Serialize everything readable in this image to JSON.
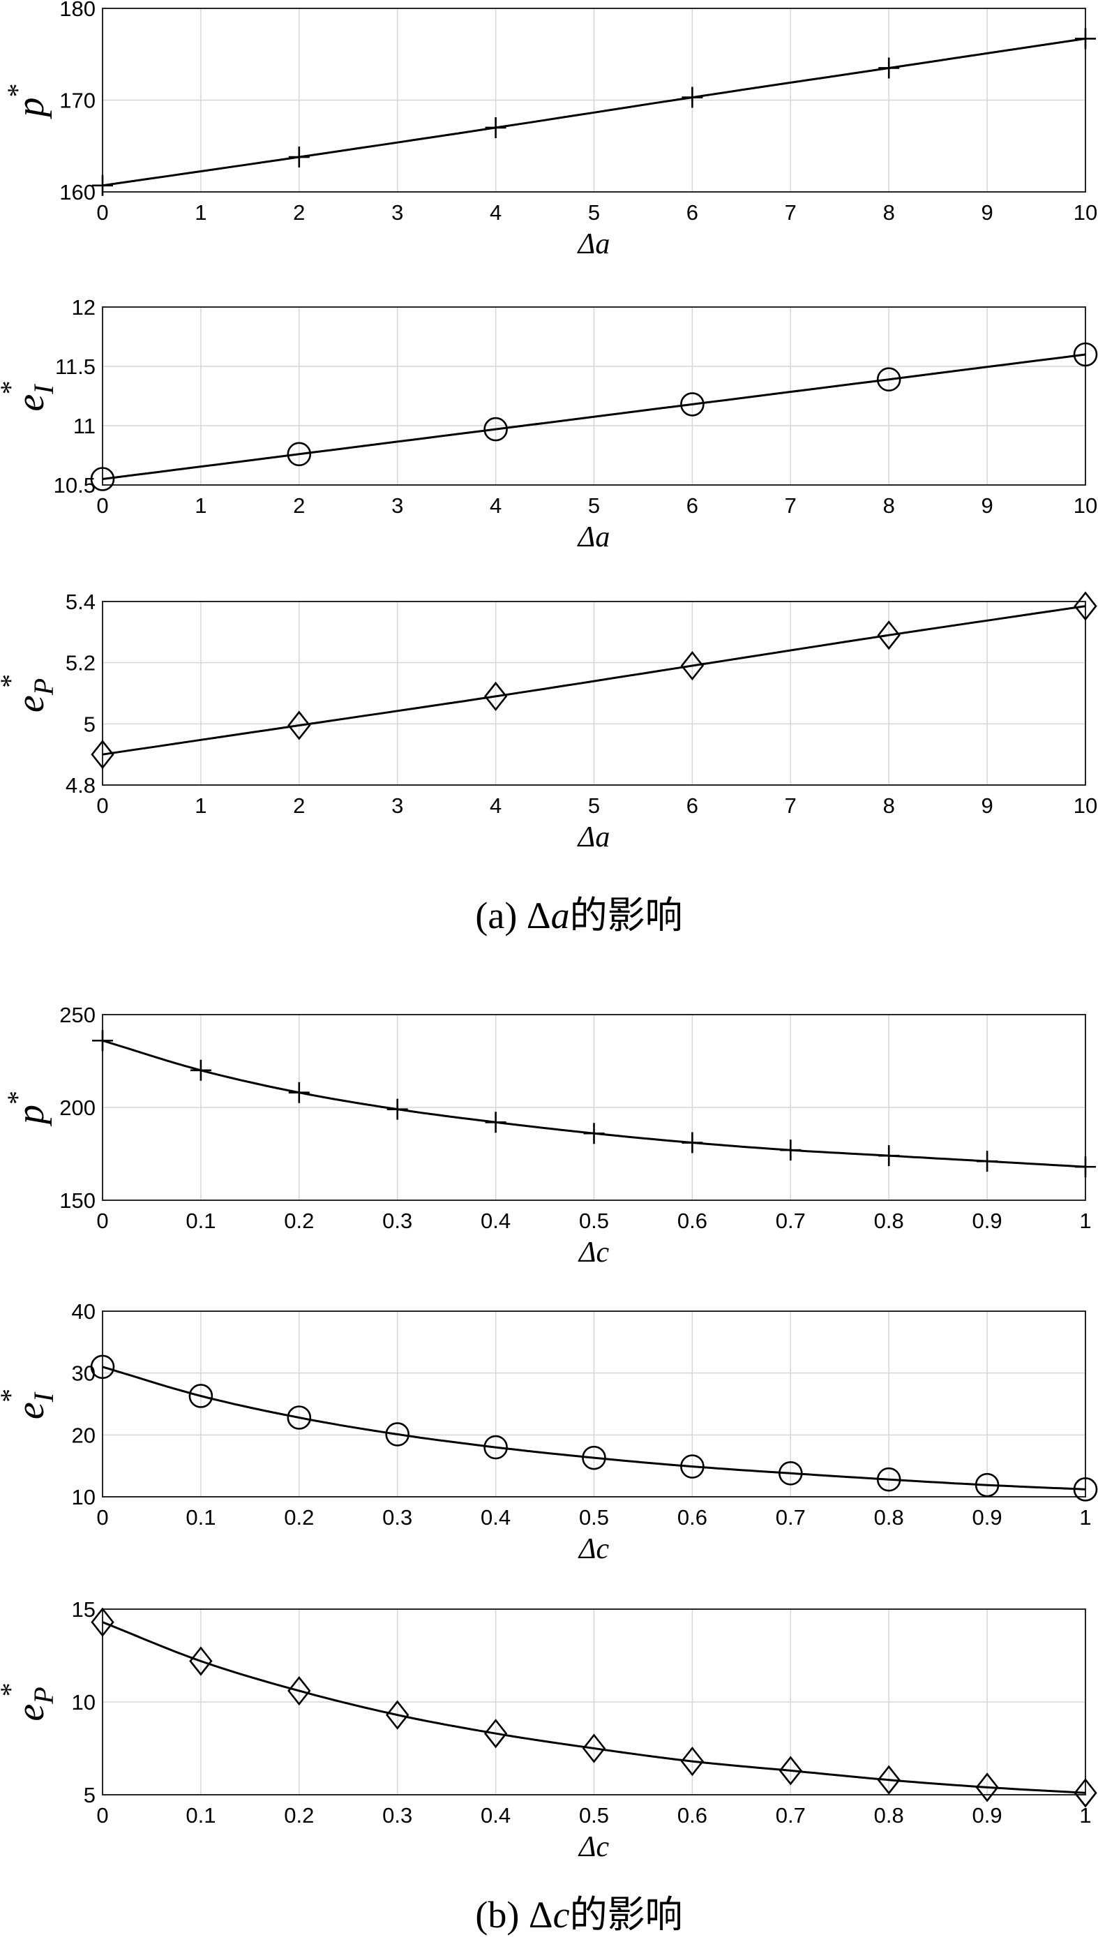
{
  "captions": [
    {
      "prefix": "(a) Δ",
      "var": "a",
      "suffix": "的影响"
    },
    {
      "prefix": "(b) Δ",
      "var": "c",
      "suffix": "的影响"
    }
  ],
  "chart_data": [
    {
      "type": "line",
      "marker": "plus",
      "x": [
        0,
        2,
        4,
        6,
        8,
        10
      ],
      "y": [
        160.7,
        163.8,
        167.0,
        170.3,
        173.5,
        176.7
      ],
      "xlabel": "Δa",
      "ylabel": {
        "base": "p",
        "sup": "*",
        "sub": ""
      },
      "xlim": [
        0,
        10
      ],
      "ylim": [
        160,
        180
      ],
      "xticks": [
        "0",
        "1",
        "2",
        "3",
        "4",
        "5",
        "6",
        "7",
        "8",
        "9",
        "10"
      ],
      "yticks": [
        "160",
        "170",
        "180"
      ],
      "grid": true
    },
    {
      "type": "line",
      "marker": "circle",
      "x": [
        0,
        2,
        4,
        6,
        8,
        10
      ],
      "y": [
        10.55,
        10.76,
        10.97,
        11.18,
        11.39,
        11.6
      ],
      "xlabel": "Δa",
      "ylabel": {
        "base": "e",
        "sup": "*",
        "sub": "I"
      },
      "xlim": [
        0,
        10
      ],
      "ylim": [
        10.5,
        12
      ],
      "xticks": [
        "0",
        "1",
        "2",
        "3",
        "4",
        "5",
        "6",
        "7",
        "8",
        "9",
        "10"
      ],
      "yticks": [
        "10.5",
        "11",
        "11.5",
        "12"
      ],
      "grid": true
    },
    {
      "type": "line",
      "marker": "diamond",
      "x": [
        0,
        2,
        4,
        6,
        8,
        10
      ],
      "y": [
        4.9,
        4.995,
        5.09,
        5.19,
        5.29,
        5.385
      ],
      "xlabel": "Δa",
      "ylabel": {
        "base": "e",
        "sup": "*",
        "sub": "P"
      },
      "xlim": [
        0,
        10
      ],
      "ylim": [
        4.8,
        5.4
      ],
      "xticks": [
        "0",
        "1",
        "2",
        "3",
        "4",
        "5",
        "6",
        "7",
        "8",
        "9",
        "10"
      ],
      "yticks": [
        "4.8",
        "5",
        "5.2",
        "5.4"
      ],
      "grid": true
    },
    {
      "type": "line",
      "marker": "plus",
      "x": [
        0,
        0.1,
        0.2,
        0.3,
        0.4,
        0.5,
        0.6,
        0.7,
        0.8,
        0.9,
        1
      ],
      "y": [
        236,
        220,
        208,
        199,
        192,
        186,
        181,
        177,
        174,
        171,
        168
      ],
      "xlabel": "Δc",
      "ylabel": {
        "base": "p",
        "sup": "*",
        "sub": ""
      },
      "xlim": [
        0,
        1
      ],
      "ylim": [
        150,
        250
      ],
      "xticks": [
        "0",
        "0.1",
        "0.2",
        "0.3",
        "0.4",
        "0.5",
        "0.6",
        "0.7",
        "0.8",
        "0.9",
        "1"
      ],
      "yticks": [
        "150",
        "200",
        "250"
      ],
      "grid": true
    },
    {
      "type": "line",
      "marker": "circle",
      "x": [
        0,
        0.1,
        0.2,
        0.3,
        0.4,
        0.5,
        0.6,
        0.7,
        0.8,
        0.9,
        1
      ],
      "y": [
        31.0,
        26.3,
        22.8,
        20.1,
        18.0,
        16.3,
        14.9,
        13.8,
        12.8,
        11.9,
        11.2
      ],
      "xlabel": "Δc",
      "ylabel": {
        "base": "e",
        "sup": "*",
        "sub": "I"
      },
      "xlim": [
        0,
        1
      ],
      "ylim": [
        10,
        40
      ],
      "xticks": [
        "0",
        "0.1",
        "0.2",
        "0.3",
        "0.4",
        "0.5",
        "0.6",
        "0.7",
        "0.8",
        "0.9",
        "1"
      ],
      "yticks": [
        "10",
        "20",
        "30",
        "40"
      ],
      "grid": true
    },
    {
      "type": "line",
      "marker": "diamond",
      "x": [
        0,
        0.1,
        0.2,
        0.3,
        0.4,
        0.5,
        0.6,
        0.7,
        0.8,
        0.9,
        1
      ],
      "y": [
        14.3,
        12.2,
        10.6,
        9.3,
        8.3,
        7.5,
        6.8,
        6.3,
        5.8,
        5.4,
        5.1
      ],
      "xlabel": "Δc",
      "ylabel": {
        "base": "e",
        "sup": "*",
        "sub": "P"
      },
      "xlim": [
        0,
        1
      ],
      "ylim": [
        5,
        15
      ],
      "xticks": [
        "0",
        "0.1",
        "0.2",
        "0.3",
        "0.4",
        "0.5",
        "0.6",
        "0.7",
        "0.8",
        "0.9",
        "1"
      ],
      "yticks": [
        "5",
        "10",
        "15"
      ],
      "grid": true
    }
  ]
}
